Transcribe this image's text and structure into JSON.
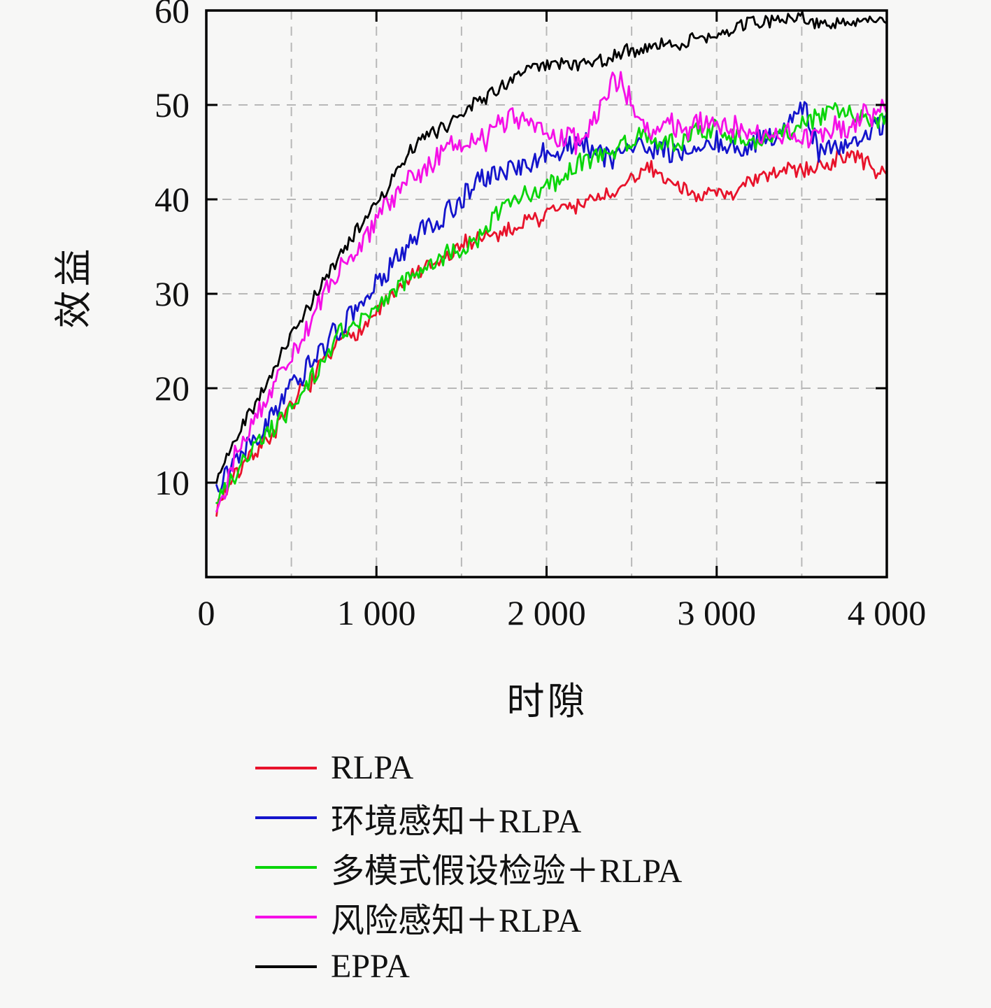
{
  "figure": {
    "background": "#f7f7f6",
    "border_color": "#000000"
  },
  "chart_data": {
    "type": "line",
    "title": "",
    "xlabel": "时隙",
    "ylabel": "效益",
    "xlim": [
      0,
      4000
    ],
    "ylim": [
      0,
      60
    ],
    "x_ticks": [
      0,
      1000,
      2000,
      3000,
      4000
    ],
    "x_tick_labels": [
      "0",
      "1 000",
      "2 000",
      "3 000",
      "4 000"
    ],
    "y_ticks": [
      10,
      20,
      30,
      40,
      50,
      60
    ],
    "y_tick_labels": [
      "10",
      "20",
      "30",
      "40",
      "50",
      "60"
    ],
    "grid": {
      "style": "dashed",
      "color": "#b8b8b8",
      "x_lines": [
        500,
        1000,
        1500,
        2000,
        2500,
        3000,
        3500
      ],
      "y_lines": [
        10,
        20,
        30,
        40,
        50
      ]
    },
    "legend_position": "below",
    "series": [
      {
        "name": "RLPA",
        "color": "#e8132b",
        "noise": 1.0,
        "seed": 7,
        "points": [
          [
            60,
            7.5
          ],
          [
            200,
            12
          ],
          [
            400,
            16
          ],
          [
            600,
            20
          ],
          [
            800,
            25
          ],
          [
            1000,
            28
          ],
          [
            1200,
            31.5
          ],
          [
            1400,
            33.5
          ],
          [
            1600,
            35.5
          ],
          [
            1800,
            37
          ],
          [
            2000,
            38.5
          ],
          [
            2200,
            39.5
          ],
          [
            2400,
            40.5
          ],
          [
            2600,
            43
          ],
          [
            2800,
            41.5
          ],
          [
            3000,
            40.5
          ],
          [
            3200,
            41.5
          ],
          [
            3400,
            42.5
          ],
          [
            3600,
            44
          ],
          [
            3800,
            44.5
          ],
          [
            4000,
            42.5
          ]
        ]
      },
      {
        "name": "环境感知＋RLPA",
        "color": "#1414cc",
        "noise": 1.3,
        "seed": 13,
        "points": [
          [
            60,
            10
          ],
          [
            200,
            14
          ],
          [
            400,
            19
          ],
          [
            600,
            23
          ],
          [
            800,
            26.5
          ],
          [
            1000,
            30.5
          ],
          [
            1200,
            35
          ],
          [
            1400,
            38.5
          ],
          [
            1600,
            41.5
          ],
          [
            1800,
            43.5
          ],
          [
            2000,
            44.5
          ],
          [
            2200,
            46
          ],
          [
            2400,
            44
          ],
          [
            2600,
            46.5
          ],
          [
            2800,
            45
          ],
          [
            3000,
            46
          ],
          [
            3200,
            45
          ],
          [
            3400,
            47
          ],
          [
            3500,
            51
          ],
          [
            3600,
            45.5
          ],
          [
            3800,
            45.5
          ],
          [
            4000,
            47.5
          ]
        ]
      },
      {
        "name": "多模式假设检验＋RLPA",
        "color": "#0ad50a",
        "noise": 1.2,
        "seed": 21,
        "points": [
          [
            60,
            8
          ],
          [
            200,
            12
          ],
          [
            400,
            16.5
          ],
          [
            600,
            21
          ],
          [
            800,
            25.5
          ],
          [
            1000,
            28
          ],
          [
            1200,
            31
          ],
          [
            1400,
            34
          ],
          [
            1600,
            36.5
          ],
          [
            1800,
            40
          ],
          [
            2000,
            42
          ],
          [
            2200,
            44.5
          ],
          [
            2400,
            45.5
          ],
          [
            2600,
            46.5
          ],
          [
            2800,
            46
          ],
          [
            3000,
            47.5
          ],
          [
            3200,
            46.5
          ],
          [
            3400,
            47
          ],
          [
            3600,
            48.5
          ],
          [
            3800,
            49
          ],
          [
            4000,
            49
          ]
        ]
      },
      {
        "name": "风险感知＋RLPA",
        "color": "#f510e7",
        "noise": 1.4,
        "seed": 29,
        "points": [
          [
            60,
            8
          ],
          [
            200,
            14
          ],
          [
            400,
            20.5
          ],
          [
            600,
            26.5
          ],
          [
            800,
            33
          ],
          [
            1000,
            37.5
          ],
          [
            1200,
            41.5
          ],
          [
            1400,
            45
          ],
          [
            1600,
            46.5
          ],
          [
            1800,
            48.5
          ],
          [
            2000,
            48
          ],
          [
            2200,
            45.5
          ],
          [
            2400,
            52.5
          ],
          [
            2600,
            48
          ],
          [
            2800,
            47.5
          ],
          [
            3000,
            48.5
          ],
          [
            3200,
            47
          ],
          [
            3400,
            47.5
          ],
          [
            3600,
            48
          ],
          [
            3800,
            48
          ],
          [
            4000,
            49.5
          ]
        ]
      },
      {
        "name": "EPPA",
        "color": "#000000",
        "noise": 0.8,
        "seed": 42,
        "points": [
          [
            60,
            10
          ],
          [
            200,
            16
          ],
          [
            400,
            22.5
          ],
          [
            600,
            28.5
          ],
          [
            800,
            34.5
          ],
          [
            1000,
            40
          ],
          [
            1200,
            45
          ],
          [
            1400,
            47.5
          ],
          [
            1600,
            51
          ],
          [
            1800,
            53
          ],
          [
            2000,
            54
          ],
          [
            2200,
            54.5
          ],
          [
            2400,
            55.5
          ],
          [
            2600,
            56
          ],
          [
            2800,
            56.5
          ],
          [
            3000,
            57.5
          ],
          [
            3200,
            58.5
          ],
          [
            3400,
            58.8
          ],
          [
            3600,
            58.5
          ],
          [
            3800,
            58.2
          ],
          [
            4000,
            58
          ]
        ]
      }
    ]
  }
}
